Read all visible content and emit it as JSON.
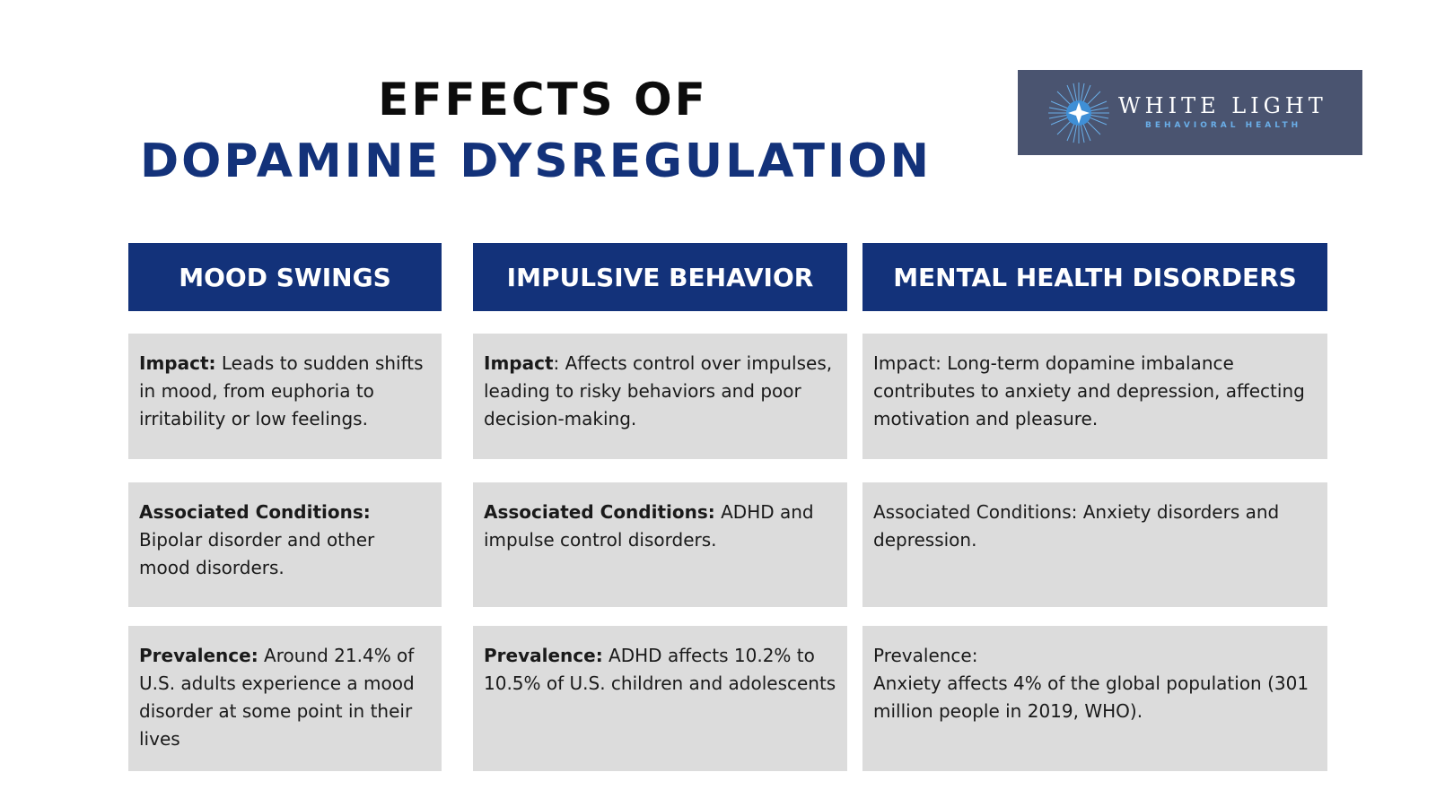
{
  "header": {
    "title_line1": "EFFECTS OF",
    "title_line2": "DOPAMINE DYSREGULATION"
  },
  "logo": {
    "name": "WHITE LIGHT",
    "subtitle": "BEHAVIORAL HEALTH"
  },
  "columns": [
    {
      "heading": "MOOD SWINGS",
      "cells": [
        {
          "label": "Impact:",
          "text": " Leads to sudden shifts in mood, from euphoria to irritability or low feelings."
        },
        {
          "label": "Associated Conditions:",
          "text": " Bipolar disorder and other mood disorders."
        },
        {
          "label": "Prevalence:",
          "text": " Around 21.4% of U.S. adults experience a mood disorder at some point in their lives"
        }
      ]
    },
    {
      "heading": "IMPULSIVE BEHAVIOR",
      "cells": [
        {
          "label": "Impact",
          "text": ": Affects control over impulses, leading to risky behaviors and poor decision-making."
        },
        {
          "label": "Associated Conditions:",
          "text": " ADHD and impulse control disorders."
        },
        {
          "label": "Prevalence:",
          "text": " ADHD affects 10.2% to 10.5% of U.S. children and adolescents"
        }
      ]
    },
    {
      "heading": "MENTAL HEALTH DISORDERS",
      "cells": [
        {
          "label": "Impact:",
          "text": " Long-term dopamine imbalance contributes to anxiety and depression, affecting motivation and pleasure."
        },
        {
          "label": "Associated Conditions:",
          "text": " Anxiety disorders and depression."
        },
        {
          "label": "Prevalence:",
          "text": "Anxiety affects 4% of the global population (301 million people in 2019, WHO)."
        }
      ]
    }
  ]
}
